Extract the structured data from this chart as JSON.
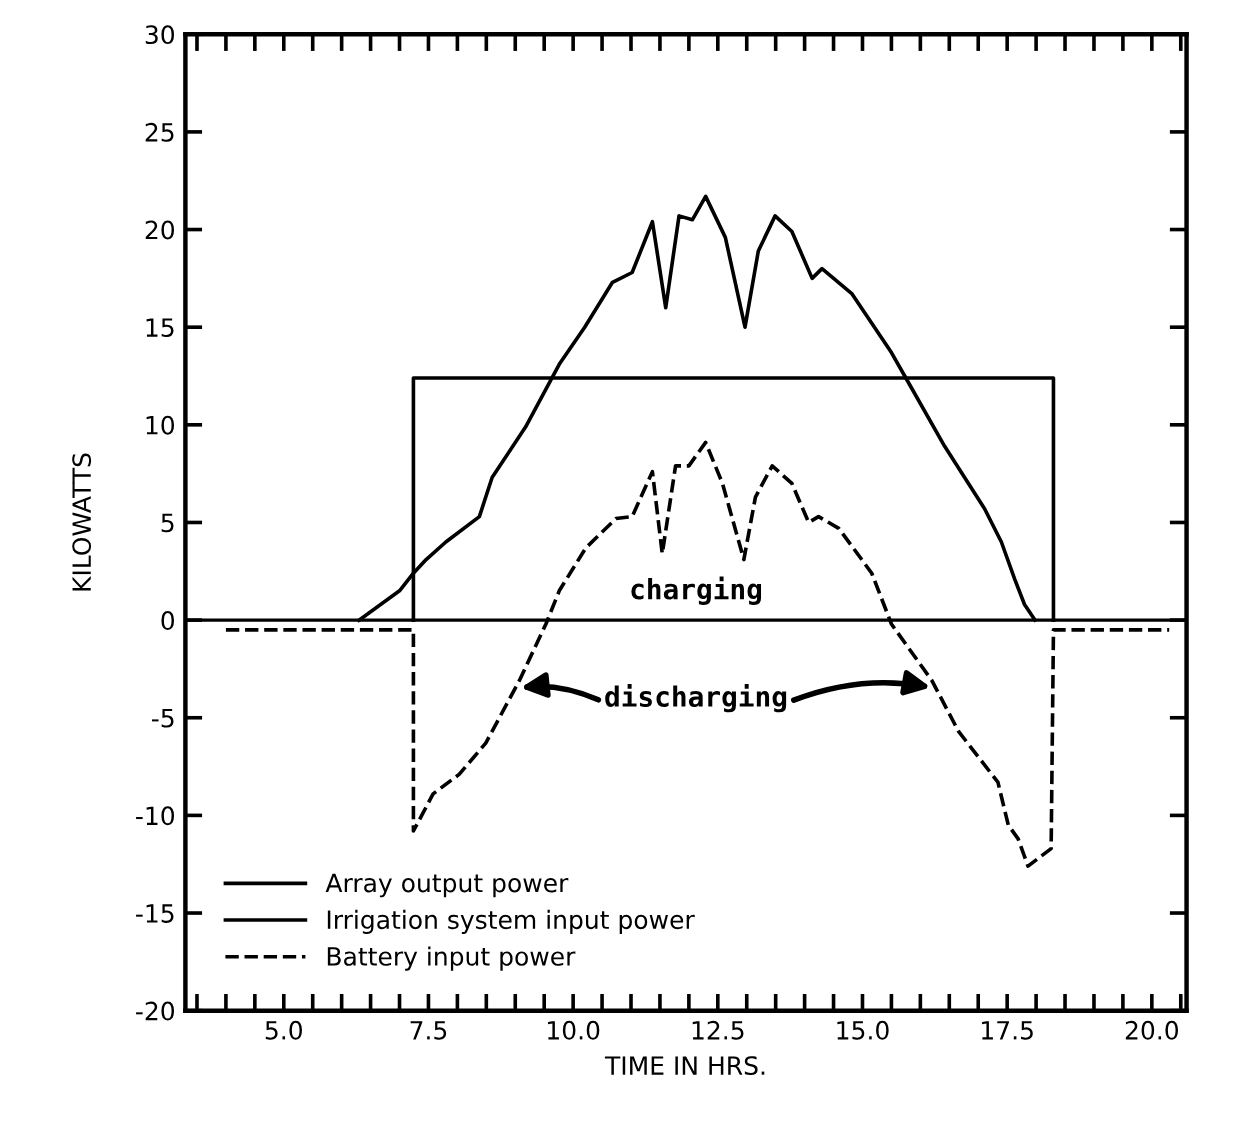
{
  "chart_data": {
    "type": "line",
    "xlabel": "TIME IN HRS.",
    "ylabel": "KILOWATTS",
    "xlim": [
      3.3,
      20.6
    ],
    "ylim": [
      -20,
      30
    ],
    "xticks": [
      {
        "value": 3.5,
        "label": null
      },
      {
        "value": 4,
        "label": null
      },
      {
        "value": 4.5,
        "label": null
      },
      {
        "value": 5,
        "label": "5.0"
      },
      {
        "value": 5.5,
        "label": null
      },
      {
        "value": 6,
        "label": null
      },
      {
        "value": 6.5,
        "label": null
      },
      {
        "value": 7,
        "label": null
      },
      {
        "value": 7.5,
        "label": "7.5"
      },
      {
        "value": 8,
        "label": null
      },
      {
        "value": 8.5,
        "label": null
      },
      {
        "value": 9,
        "label": null
      },
      {
        "value": 9.5,
        "label": null
      },
      {
        "value": 10,
        "label": "10.0"
      },
      {
        "value": 10.5,
        "label": null
      },
      {
        "value": 11,
        "label": null
      },
      {
        "value": 11.5,
        "label": null
      },
      {
        "value": 12,
        "label": null
      },
      {
        "value": 12.5,
        "label": "12.5"
      },
      {
        "value": 13,
        "label": null
      },
      {
        "value": 13.5,
        "label": null
      },
      {
        "value": 14,
        "label": null
      },
      {
        "value": 14.5,
        "label": null
      },
      {
        "value": 15,
        "label": "15.0"
      },
      {
        "value": 15.5,
        "label": null
      },
      {
        "value": 16,
        "label": null
      },
      {
        "value": 16.5,
        "label": null
      },
      {
        "value": 17,
        "label": null
      },
      {
        "value": 17.5,
        "label": "17.5"
      },
      {
        "value": 18,
        "label": null
      },
      {
        "value": 18.5,
        "label": null
      },
      {
        "value": 19,
        "label": null
      },
      {
        "value": 19.5,
        "label": null
      },
      {
        "value": 20,
        "label": "20.0"
      },
      {
        "value": 20.5,
        "label": null
      }
    ],
    "yticks": [
      -20,
      -15,
      -10,
      -5,
      0,
      5,
      10,
      15,
      20,
      25,
      30
    ],
    "grid": false,
    "legend": "bottom left",
    "marker": "none",
    "ref_lines": [
      {
        "axis": "y",
        "value": 0,
        "color": "#000000",
        "line_style": "solid"
      }
    ],
    "series": [
      {
        "name": "Array output power",
        "color": "#000000",
        "line_style": "solid",
        "x": [
          6.3,
          7.0,
          7.24,
          7.46,
          7.8,
          8.38,
          8.6,
          9.18,
          9.76,
          10.2,
          10.68,
          11.02,
          11.37,
          11.6,
          11.83,
          12.06,
          12.29,
          12.63,
          12.97,
          13.2,
          13.49,
          13.78,
          14.13,
          14.3,
          14.82,
          15.5,
          15.73,
          16.42,
          17.11,
          17.4,
          17.63,
          17.8,
          17.98
        ],
        "values": [
          0,
          1.5,
          2.4,
          3.1,
          4.0,
          5.3,
          7.3,
          9.9,
          13.1,
          15.0,
          17.3,
          17.8,
          20.4,
          16.0,
          20.7,
          20.5,
          21.7,
          19.6,
          15.0,
          18.9,
          20.7,
          19.9,
          17.5,
          18.0,
          16.7,
          13.7,
          12.5,
          8.9,
          5.7,
          4.0,
          2.1,
          0.8,
          0
        ]
      },
      {
        "name": "Irrigation system input power",
        "color": "#000000",
        "line_style": "solid",
        "x": [
          7.24,
          7.24,
          18.3,
          18.3
        ],
        "values": [
          0,
          12.4,
          12.4,
          0
        ]
      },
      {
        "name": "Battery input power",
        "color": "#000000",
        "line_style": "dashed",
        "x": [
          4.0,
          7.24,
          7.24,
          7.58,
          8.03,
          8.49,
          9.07,
          9.53,
          9.76,
          10.22,
          10.74,
          11.02,
          11.37,
          11.54,
          11.77,
          12.0,
          12.29,
          12.58,
          12.95,
          13.15,
          13.44,
          13.78,
          14.07,
          14.24,
          14.59,
          15.16,
          15.5,
          16.2,
          16.66,
          17.34,
          17.52,
          17.69,
          17.86,
          18.26,
          18.3,
          20.3
        ],
        "values": [
          -0.5,
          -0.5,
          -10.8,
          -8.9,
          -7.9,
          -6.3,
          -3.1,
          -0.2,
          1.5,
          3.7,
          5.2,
          5.3,
          7.6,
          3.4,
          7.9,
          7.9,
          9.1,
          7.0,
          3.1,
          6.3,
          7.9,
          7.0,
          5.0,
          5.3,
          4.7,
          2.4,
          -0.2,
          -3.1,
          -5.7,
          -8.3,
          -10.5,
          -11.2,
          -12.6,
          -11.7,
          -0.5,
          -0.5
        ]
      }
    ],
    "annotations": [
      "charging",
      {
        "text": "discharging",
        "x": 9.0,
        "y": -3.5
      }
    ]
  }
}
